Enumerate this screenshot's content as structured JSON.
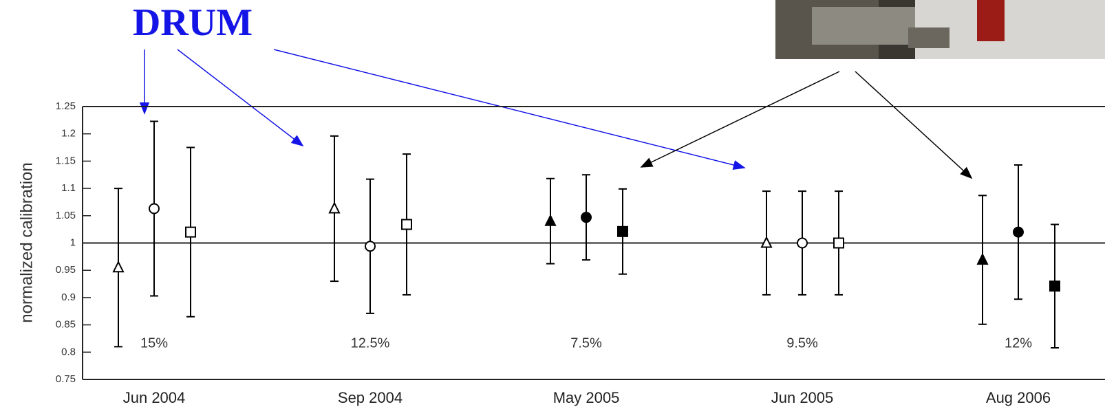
{
  "chart_data": {
    "type": "errorbar",
    "callout": "DRUM",
    "ylabel": "normalized calibration",
    "categories": [
      "Jun 2004",
      "Sep 2004",
      "May 2005",
      "Jun 2005",
      "Aug 2006"
    ],
    "annotations": [
      "15%",
      "12.5%",
      "7.5%",
      "9.5%",
      "12%"
    ],
    "filled": [
      false,
      false,
      true,
      false,
      true
    ],
    "series": [
      {
        "marker": "triangle",
        "color": "#000000",
        "values": [
          0.955,
          1.063,
          1.04,
          1.0,
          0.969
        ],
        "errors": [
          0.145,
          0.133,
          0.078,
          0.095,
          0.118
        ]
      },
      {
        "marker": "circle",
        "color": "#000000",
        "values": [
          1.063,
          0.994,
          1.047,
          1.0,
          1.02
        ],
        "errors": [
          0.16,
          0.123,
          0.078,
          0.095,
          0.123
        ]
      },
      {
        "marker": "square",
        "color": "#000000",
        "values": [
          1.02,
          1.034,
          1.021,
          1.0,
          0.921
        ],
        "errors": [
          0.155,
          0.129,
          0.078,
          0.095,
          0.113
        ]
      }
    ],
    "hline": 1,
    "ylim": [
      0.75,
      1.25
    ],
    "yticks": [
      0.75,
      0.8,
      0.85,
      0.9,
      0.95,
      1,
      1.05,
      1.1,
      1.15,
      1.2,
      1.25
    ]
  }
}
